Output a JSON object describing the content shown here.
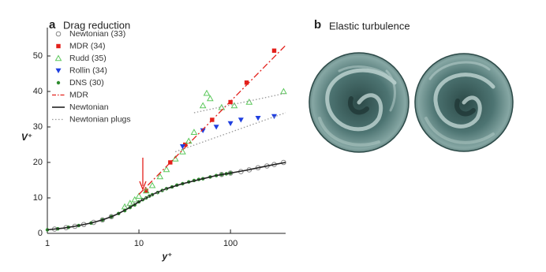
{
  "chart_data": {
    "type": "scatter",
    "panel_label": "a",
    "title": "Drag reduction",
    "xlabel": "y⁺",
    "ylabel": "V⁺",
    "xscale": "log",
    "xlim": [
      1,
      400
    ],
    "ylim": [
      0,
      58
    ],
    "xticks": [
      1,
      10,
      100
    ],
    "yticks": [
      0,
      10,
      20,
      30,
      40,
      50
    ],
    "legend": "upper left",
    "series": [
      {
        "name": "Newtonian (33)",
        "color": "#888888",
        "style": "open-circle",
        "x": [
          1.2,
          1.6,
          2,
          2.5,
          3.2,
          4,
          5,
          80,
          100,
          130,
          160,
          200,
          250,
          300,
          380
        ],
        "values": [
          1.2,
          1.6,
          2,
          2.5,
          3.1,
          3.8,
          4.7,
          16.6,
          17,
          17.4,
          17.9,
          18.5,
          19,
          19.4,
          20
        ]
      },
      {
        "name": "MDR (34)",
        "color": "#e3201b",
        "style": "square",
        "x": [
          12,
          22,
          32,
          63,
          100,
          150,
          300
        ],
        "values": [
          12,
          20,
          25,
          32,
          37,
          42.5,
          51.5
        ]
      },
      {
        "name": "Rudd (35)",
        "color": "#5cc85c",
        "style": "open-triangle",
        "x": [
          7,
          8,
          9,
          10,
          12,
          14,
          17,
          20,
          25,
          30,
          35,
          40,
          50,
          55,
          60,
          80,
          110,
          160,
          380
        ],
        "values": [
          7.5,
          8.5,
          9.5,
          10.5,
          12,
          13.5,
          16,
          18,
          21,
          23,
          26,
          28.5,
          36,
          39.5,
          38,
          35.5,
          36,
          37,
          40
        ]
      },
      {
        "name": "Rollin (34)",
        "color": "#1f3fe0",
        "style": "down-triangle",
        "x": [
          30,
          50,
          70,
          100,
          130,
          200,
          300
        ],
        "values": [
          24.5,
          29,
          30,
          31,
          32,
          32.5,
          33
        ]
      },
      {
        "name": "DNS (30)",
        "color": "#2e8b2e",
        "style": "dot",
        "x": [
          1,
          1.3,
          1.7,
          2.2,
          3,
          4,
          5,
          6,
          7,
          8,
          9,
          10,
          11,
          12,
          13,
          14,
          16,
          18,
          20,
          23,
          26,
          30,
          35,
          40,
          45,
          50,
          60,
          70,
          80,
          90,
          100
        ],
        "values": [
          1,
          1.3,
          1.7,
          2.2,
          2.9,
          3.8,
          4.7,
          5.6,
          6.4,
          7.3,
          8,
          8.9,
          9.5,
          10,
          10.5,
          10.9,
          11.5,
          12.1,
          12.6,
          13.1,
          13.6,
          14,
          14.5,
          14.9,
          15.2,
          15.4,
          15.9,
          16.3,
          16.6,
          16.8,
          17
        ]
      },
      {
        "name": "MDR",
        "color": "#e3201b",
        "style": "dashdot",
        "x": [
          10,
          400
        ],
        "values": [
          11,
          53
        ]
      },
      {
        "name": "Newtonian",
        "color": "#222222",
        "style": "solid",
        "x": [
          1,
          1.5,
          2,
          3,
          4,
          5,
          6,
          8,
          10,
          15,
          20,
          30,
          50,
          70,
          100,
          150,
          200,
          300,
          400
        ],
        "values": [
          1,
          1.5,
          2,
          2.9,
          3.8,
          4.7,
          5.6,
          7.3,
          8.9,
          11.3,
          12.6,
          14,
          15.4,
          16.3,
          17,
          17.8,
          18.5,
          19.4,
          20
        ]
      },
      {
        "name": "Newtonian plugs",
        "color": "#999999",
        "style": "dotted",
        "x": [
          40,
          400,
          400,
          25,
          400,
          400,
          7,
          20
        ],
        "values": [
          34,
          39.5,
          null,
          23,
          34,
          null,
          7.5,
          12.5
        ]
      }
    ]
  },
  "panel_b": {
    "label": "b",
    "title": "Elastic turbulence"
  }
}
